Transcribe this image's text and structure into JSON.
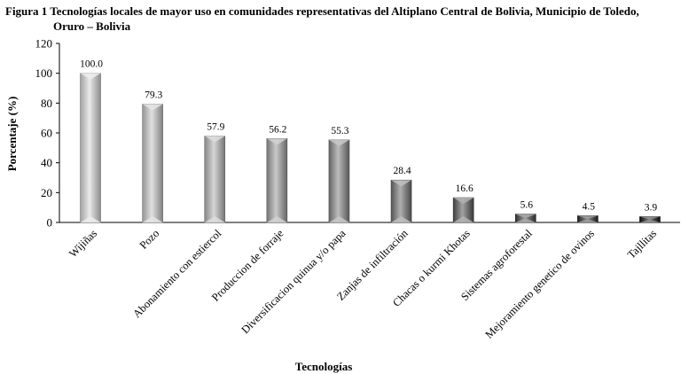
{
  "figure": {
    "title_line1": "Figura 1 Tecnologías locales de mayor uso en comunidades representativas del Altiplano Central de Bolivia, Municipio de Toledo,",
    "title_line2": "Oruro – Bolivia"
  },
  "chart_data": {
    "type": "bar",
    "title": "Figura 1 Tecnologías locales de mayor uso en comunidades representativas del Altiplano Central de Bolivia, Municipio de Toledo, Oruro – Bolivia",
    "xlabel": "Tecnologías",
    "ylabel": "Porcentaje (%)",
    "ylim": [
      0,
      120
    ],
    "yticks": [
      0,
      20,
      40,
      60,
      80,
      100,
      120
    ],
    "grid": false,
    "legend": "none",
    "categories": [
      "Wijiñas",
      "Pozo",
      "Abonamiento con estiercol",
      "Produccion de forraje",
      "Diversificacion quinua y/o papa",
      "Zanjas de infiltración",
      "Chacas o kurmi Khotas",
      "Sistemas agroforestal",
      "Mejoramiento genetico de ovinos",
      "Tajllitas"
    ],
    "values": [
      100.0,
      79.3,
      57.9,
      56.2,
      55.3,
      28.4,
      16.6,
      5.6,
      4.5,
      3.9
    ],
    "value_labels": [
      "100.0",
      "79.3",
      "57.9",
      "56.2",
      "55.3",
      "28.4",
      "16.6",
      "5.6",
      "4.5",
      "3.9"
    ],
    "colors": [
      "#d8d8d8",
      "#c6c6c6",
      "#b4b4b4",
      "#9c9c9c",
      "#858585",
      "#707070",
      "#555555",
      "#404040",
      "#2a2a2a",
      "#111111"
    ]
  }
}
